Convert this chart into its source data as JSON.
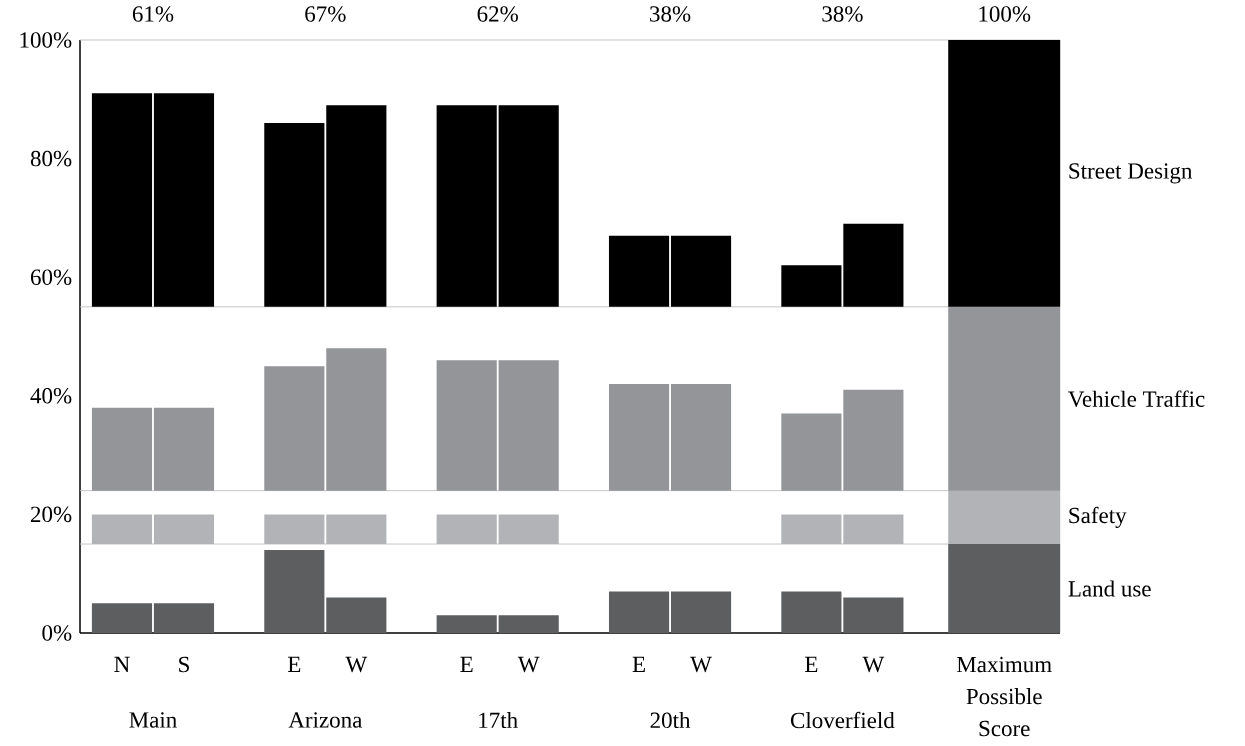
{
  "chart_data": {
    "type": "bar",
    "categories": [
      "N",
      "S",
      "E",
      "W",
      "E",
      "W",
      "E",
      "W",
      "E",
      "W",
      "Maximum Possible Score"
    ],
    "series": [
      {
        "name": "Land use",
        "color": "#5d5e60",
        "values": [
          5,
          5,
          14,
          6,
          3,
          3,
          7,
          7,
          7,
          6,
          15
        ],
        "base": [
          0,
          0,
          0,
          0,
          0,
          0,
          0,
          0,
          0,
          0,
          0
        ]
      },
      {
        "name": "Safety",
        "color": "#b1b3b6",
        "values": [
          5,
          5,
          5,
          5,
          5,
          5,
          null,
          null,
          5,
          5,
          9
        ],
        "base": [
          15,
          15,
          15,
          15,
          15,
          15,
          null,
          null,
          15,
          15,
          15
        ]
      },
      {
        "name": "Vehicle Traffic",
        "color": "#939598",
        "values": [
          14,
          14,
          21,
          24,
          22,
          22,
          18,
          18,
          13,
          17,
          31
        ],
        "base": [
          24,
          24,
          24,
          24,
          24,
          24,
          24,
          24,
          24,
          24,
          24
        ]
      },
      {
        "name": "Street Design",
        "color": "#000000",
        "values": [
          36,
          36,
          31,
          34,
          34,
          34,
          12,
          12,
          7,
          14,
          45
        ],
        "base": [
          55,
          55,
          55,
          55,
          55,
          55,
          55,
          55,
          55,
          55,
          55
        ]
      }
    ],
    "ylim": [
      0,
      100
    ],
    "yticks": [
      {
        "value": 0,
        "label": "0%"
      },
      {
        "value": 20,
        "label": "20%"
      },
      {
        "value": 40,
        "label": "40%"
      },
      {
        "value": 60,
        "label": "60%"
      },
      {
        "value": 80,
        "label": "80%"
      },
      {
        "value": 100,
        "label": "100%"
      }
    ],
    "ref_lines": [
      {
        "axis": "y",
        "value": 15,
        "color": "#c0c0c0"
      },
      {
        "axis": "y",
        "value": 24,
        "color": "#c0c0c0"
      },
      {
        "axis": "y",
        "value": 55,
        "color": "#c0c0c0"
      },
      {
        "axis": "y",
        "value": 100,
        "color": "#c0c0c0"
      }
    ],
    "annotations": [
      "Main",
      "Arizona",
      "17th",
      "20th",
      "Cloverfield",
      "61%",
      "67%",
      "62%",
      "38%",
      "38%",
      "100%"
    ]
  }
}
